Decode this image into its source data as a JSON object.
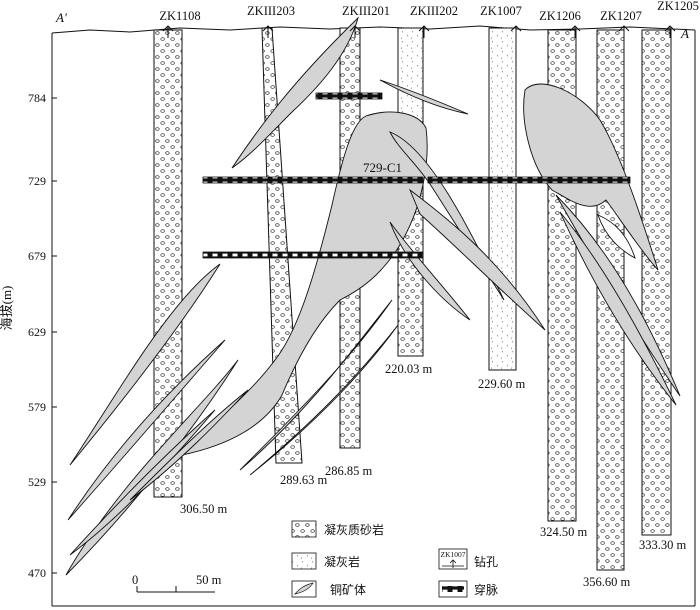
{
  "section": {
    "left_label": "A'",
    "right_label": "A"
  },
  "y_axis": {
    "label": "海拔(m)",
    "ticks": [
      "784",
      "729",
      "679",
      "629",
      "579",
      "529",
      "470"
    ]
  },
  "drillholes": [
    {
      "id": "ZK1108",
      "depth": "306.50 m",
      "lithology": "tuffaceous-sandstone"
    },
    {
      "id": "ZKIII203",
      "depth": "289.63 m",
      "lithology": "tuffaceous-sandstone"
    },
    {
      "id": "ZKIII201",
      "depth": "286.85 m",
      "lithology": "tuffaceous-sandstone"
    },
    {
      "id": "ZKIII202",
      "depth": "220.03 m",
      "lithology": "mixed"
    },
    {
      "id": "ZK1007",
      "depth": "229.60 m",
      "lithology": "tuff"
    },
    {
      "id": "ZK1206",
      "depth": "324.50 m",
      "lithology": "tuffaceous-sandstone"
    },
    {
      "id": "ZK1207",
      "depth": "356.60 m",
      "lithology": "tuffaceous-sandstone"
    },
    {
      "id": "ZK1205",
      "depth": "333.30 m",
      "lithology": "tuffaceous-sandstone"
    }
  ],
  "orebody_label": "729-C1",
  "scale_bar": {
    "start": "0",
    "end": "50 m"
  },
  "legend": {
    "tuffaceous_sandstone": "凝灰质砂岩",
    "tuff": "凝灰岩",
    "copper_orebody": "铜矿体",
    "drillhole": "钻孔",
    "drillhole_symbol_label": "ZK1007",
    "crosscut": "穿脉"
  },
  "colors": {
    "orebody_fill": "#d4d4d4",
    "line": "#111111"
  }
}
